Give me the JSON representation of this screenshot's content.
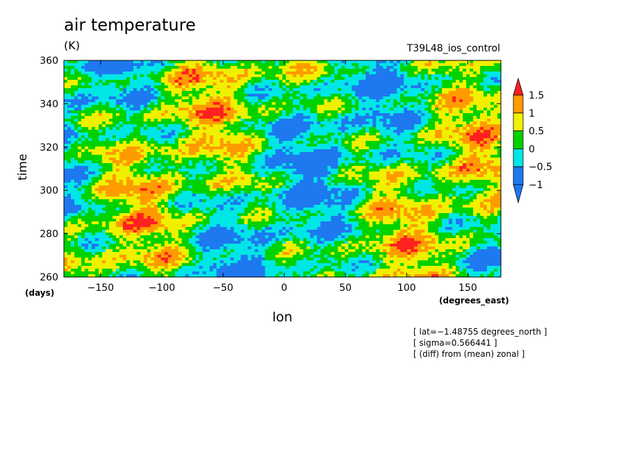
{
  "chart_data": {
    "type": "heatmap",
    "title": "air temperature",
    "units": "(K)",
    "run_label": "T39L48_ios_control",
    "xlabel": "lon",
    "x_units": "(degrees_east)",
    "ylabel": "time",
    "y_units": "(days)",
    "xlim": [
      -180,
      177
    ],
    "ylim": [
      260,
      360
    ],
    "x_ticks": [
      -150,
      -100,
      -50,
      0,
      50,
      100,
      150
    ],
    "x_tick_labels": [
      "−150",
      "−100",
      "−50",
      "0",
      "50",
      "100",
      "150"
    ],
    "y_ticks": [
      260,
      280,
      300,
      320,
      340,
      360
    ],
    "y_tick_labels": [
      "260",
      "280",
      "300",
      "320",
      "340",
      "360"
    ],
    "colorbar": {
      "levels": [
        -1,
        -0.5,
        0,
        0.5,
        1,
        1.5
      ],
      "level_labels": [
        "−1",
        "−0.5",
        "0",
        "0.5",
        "1",
        "1.5"
      ],
      "colors": [
        "#1e78f0",
        "#00e6e6",
        "#00d200",
        "#f0f000",
        "#ff9b00",
        "#ff2020"
      ],
      "extend": "both"
    },
    "annotations": [
      "[ lat=−1.48755 degrees_north ]",
      "[ sigma=0.566441 ]",
      "[ (diff) from (mean) zonal ]"
    ]
  }
}
